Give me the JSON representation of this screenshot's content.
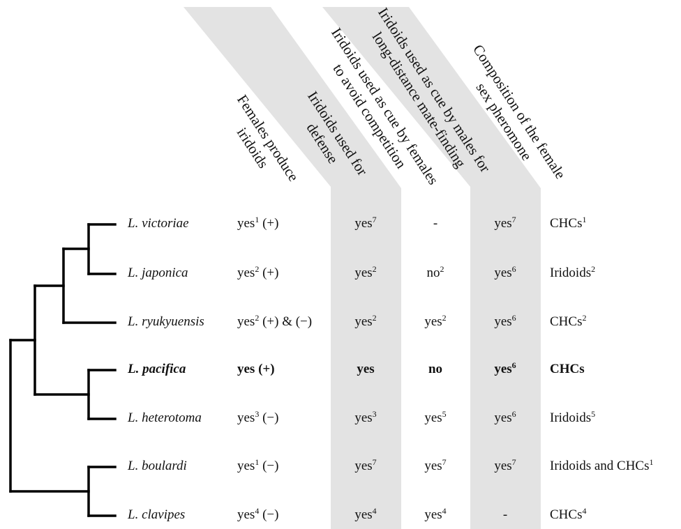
{
  "columns": {
    "females_produce": "Females produce\niridoids",
    "defense": "Iridoids used for\ndefense",
    "avoid_competition": "Iridoids used as cue by females\nto avoid competition",
    "mate_finding": "Iridoids used as cue by males for\nlong-distance mate-finding",
    "pheromone": "Composition of the female\nsex pheromone"
  },
  "shading_color": "#e3e3e3",
  "rows": [
    {
      "species": "L. victoriae",
      "bold": false,
      "females_produce": {
        "text": "yes",
        "sup": "1",
        "rest": " (+)"
      },
      "defense": {
        "text": "yes",
        "sup": "7"
      },
      "avoid_competition": {
        "text": "-",
        "sup": ""
      },
      "mate_finding": {
        "text": "yes",
        "sup": "7"
      },
      "pheromone": {
        "text": "CHCs",
        "sup": "1"
      }
    },
    {
      "species": "L. japonica",
      "bold": false,
      "females_produce": {
        "text": "yes",
        "sup": "2",
        "rest": " (+)"
      },
      "defense": {
        "text": "yes",
        "sup": "2"
      },
      "avoid_competition": {
        "text": "no",
        "sup": "2"
      },
      "mate_finding": {
        "text": "yes",
        "sup": "6"
      },
      "pheromone": {
        "text": "Iridoids",
        "sup": "2"
      }
    },
    {
      "species": "L. ryukyuensis",
      "bold": false,
      "females_produce": {
        "text": "yes",
        "sup": "2",
        "rest": " (+) & (−)"
      },
      "defense": {
        "text": "yes",
        "sup": "2"
      },
      "avoid_competition": {
        "text": "yes",
        "sup": "2"
      },
      "mate_finding": {
        "text": "yes",
        "sup": "6"
      },
      "pheromone": {
        "text": "CHCs",
        "sup": "2"
      }
    },
    {
      "species": "L. pacifica",
      "bold": true,
      "females_produce": {
        "text": "yes (+)",
        "sup": "",
        "rest": ""
      },
      "defense": {
        "text": "yes",
        "sup": ""
      },
      "avoid_competition": {
        "text": "no",
        "sup": ""
      },
      "mate_finding": {
        "text": "yes",
        "sup": "6"
      },
      "pheromone": {
        "text": "CHCs",
        "sup": ""
      }
    },
    {
      "species": "L. heterotoma",
      "bold": false,
      "females_produce": {
        "text": "yes",
        "sup": "3",
        "rest": " (−)"
      },
      "defense": {
        "text": "yes",
        "sup": "3"
      },
      "avoid_competition": {
        "text": "yes",
        "sup": "5"
      },
      "mate_finding": {
        "text": "yes",
        "sup": "6"
      },
      "pheromone": {
        "text": "Iridoids",
        "sup": "5"
      }
    },
    {
      "species": "L. boulardi",
      "bold": false,
      "females_produce": {
        "text": "yes",
        "sup": "1",
        "rest": " (−)"
      },
      "defense": {
        "text": "yes",
        "sup": "7"
      },
      "avoid_competition": {
        "text": "yes",
        "sup": "7"
      },
      "mate_finding": {
        "text": "yes",
        "sup": "7"
      },
      "pheromone": {
        "text": "Iridoids and CHCs",
        "sup": "1"
      }
    },
    {
      "species": "L. clavipes",
      "bold": false,
      "females_produce": {
        "text": "yes",
        "sup": "4",
        "rest": " (−)"
      },
      "defense": {
        "text": "yes",
        "sup": "4"
      },
      "avoid_competition": {
        "text": "yes",
        "sup": "4"
      },
      "mate_finding": {
        "text": "-",
        "sup": ""
      },
      "pheromone": {
        "text": "CHCs",
        "sup": "4"
      }
    }
  ]
}
